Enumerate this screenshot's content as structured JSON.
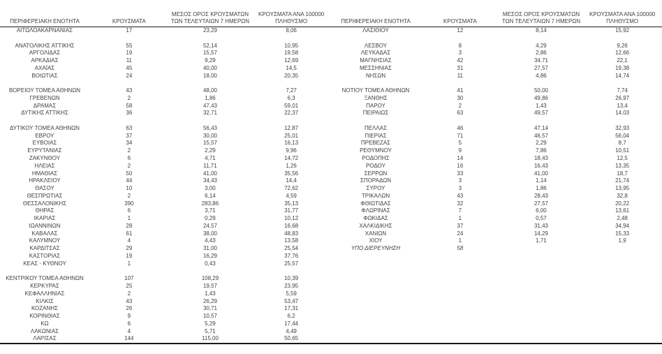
{
  "document": {
    "description_labels": {
      "region_header": "ΠΕΡΙΦΕΡΕΙΑΚΗ ΕΝΟΤΗΤΑ",
      "cases_header": "ΚΡΟΥΣΜΑΤΑ",
      "avg7day_header": "ΜΕΣΟΣ ΟΡΟΣ ΚΡΟΥΣΜΑΤΩΝ ΤΩΝ ΤΕΛΕΥΤΑΙΩΝ 7 ΗΜΕΡΩΝ",
      "per100k_header": "ΚΡΟΥΣΜΑΤΑ ΑΝΑ 100000 ΠΛΗΘΥΣΜΟ"
    }
  },
  "tables": [
    {
      "headers": [
        [
          "ΠΕΡΙΦΕΡΕΙΑΚΗ ΕΝΟΤΗΤΑ"
        ],
        [
          "ΚΡΟΥΣΜΑΤΑ"
        ],
        [
          "ΜΕΣΟΣ ΟΡΟΣ ΚΡΟΥΣΜΑΤΩΝ",
          "ΤΩΝ ΤΕΛΕΥΤΑΙΩΝ 7 ΗΜΕΡΩΝ"
        ],
        [
          "ΚΡΟΥΣΜΑΤΑ ΑΝΑ 100000",
          "ΠΛΗΘΥΣΜΟ"
        ]
      ],
      "rows": [
        {
          "cells": [
            "ΑΙΤΩΛΟΑΚΑΡΝΑΝΙΑΣ",
            "17",
            "23,29",
            "8,06"
          ]
        },
        {
          "blank": true
        },
        {
          "cells": [
            "ΑΝΑΤΟΛΙΚΗΣ ΑΤΤΙΚΗΣ",
            "55",
            "52,14",
            "10,95"
          ]
        },
        {
          "cells": [
            "ΑΡΓΟΛΙΔΑΣ",
            "19",
            "15,57",
            "19,58"
          ]
        },
        {
          "cells": [
            "ΑΡΚΑΔΙΑΣ",
            "11",
            "9,29",
            "12,69"
          ]
        },
        {
          "cells": [
            "ΑΧΑΪΑΣ",
            "45",
            "40,00",
            "14,5"
          ]
        },
        {
          "cells": [
            "ΒΟΙΩΤΙΑΣ",
            "24",
            "18,00",
            "20,35"
          ]
        },
        {
          "blank": true
        },
        {
          "cells": [
            "ΒΟΡΕΙΟΥ ΤΟΜΕΑ ΑΘΗΝΩΝ",
            "43",
            "48,00",
            "7,27"
          ]
        },
        {
          "cells": [
            "ΓΡΕΒΕΝΩΝ",
            "2",
            "1,86",
            "6,3"
          ]
        },
        {
          "cells": [
            "ΔΡΑΜΑΣ",
            "58",
            "47,43",
            "59,01"
          ]
        },
        {
          "cells": [
            "ΔΥΤΙΚΗΣ ΑΤΤΙΚΗΣ",
            "36",
            "32,71",
            "22,37"
          ]
        },
        {
          "blank": true
        },
        {
          "cells": [
            "ΔΥΤΙΚΟΥ ΤΟΜΕΑ ΑΘΗΝΩΝ",
            "63",
            "56,43",
            "12,87"
          ]
        },
        {
          "cells": [
            "ΕΒΡΟΥ",
            "37",
            "30,00",
            "25,01"
          ]
        },
        {
          "cells": [
            "ΕΥΒΟΙΑΣ",
            "34",
            "15,57",
            "16,13"
          ]
        },
        {
          "cells": [
            "ΕΥΡΥΤΑΝΙΑΣ",
            "2",
            "2,29",
            "9,96"
          ]
        },
        {
          "cells": [
            "ΖΑΚΥΝΘΟΥ",
            "6",
            "4,71",
            "14,72"
          ]
        },
        {
          "cells": [
            "ΗΛΕΙΑΣ",
            "2",
            "11,71",
            "1,26"
          ]
        },
        {
          "cells": [
            "ΗΜΑΘΙΑΣ",
            "50",
            "41,00",
            "35,56"
          ]
        },
        {
          "cells": [
            "ΗΡΑΚΛΕΙΟΥ",
            "44",
            "34,43",
            "14,4"
          ]
        },
        {
          "cells": [
            "ΘΑΣΟΥ",
            "10",
            "3,00",
            "72,62"
          ]
        },
        {
          "cells": [
            "ΘΕΣΠΡΩΤΙΑΣ",
            "2",
            "6,14",
            "4,59"
          ]
        },
        {
          "cells": [
            "ΘΕΣΣΑΛΟΝΙΚΗΣ",
            "390",
            "283,86",
            "35,13"
          ]
        },
        {
          "cells": [
            "ΘΗΡΑΣ",
            "6",
            "3,71",
            "31,77"
          ]
        },
        {
          "cells": [
            "ΙΚΑΡΙΑΣ",
            "1",
            "0,29",
            "10,12"
          ]
        },
        {
          "cells": [
            "ΙΩΑΝΝΙΝΩΝ",
            "28",
            "24,57",
            "16,68"
          ]
        },
        {
          "cells": [
            "ΚΑΒΑΛΑΣ",
            "61",
            "38,00",
            "48,83"
          ]
        },
        {
          "cells": [
            "ΚΑΛΥΜΝΟΥ",
            "4",
            "4,43",
            "13,58"
          ]
        },
        {
          "cells": [
            "ΚΑΡΔΙΤΣΑΣ",
            "29",
            "31,00",
            "25,54"
          ]
        },
        {
          "cells": [
            "ΚΑΣΤΟΡΙΑΣ",
            "19",
            "16,29",
            "37,76"
          ]
        },
        {
          "cells": [
            "ΚΕΑΣ - ΚΥΘΝΟΥ",
            "1",
            "0,43",
            "25,57"
          ]
        },
        {
          "blank": true
        },
        {
          "cells": [
            "ΚΕΝΤΡΙΚΟΥ ΤΟΜΕΑ ΑΘΗΝΩΝ",
            "107",
            "108,29",
            "10,39"
          ]
        },
        {
          "cells": [
            "ΚΕΡΚΥΡΑΣ",
            "25",
            "19,57",
            "23,95"
          ]
        },
        {
          "cells": [
            "ΚΕΦΑΛΛΗΝΙΑΣ",
            "2",
            "1,43",
            "5,59"
          ]
        },
        {
          "cells": [
            "ΚΙΛΚΙΣ",
            "43",
            "26,29",
            "53,47"
          ]
        },
        {
          "cells": [
            "ΚΟΖΑΝΗΣ",
            "26",
            "30,71",
            "17,31"
          ]
        },
        {
          "cells": [
            "ΚΟΡΙΝΘΙΑΣ",
            "9",
            "10,57",
            "6,2"
          ]
        },
        {
          "cells": [
            "ΚΩ",
            "6",
            "5,29",
            "17,44"
          ]
        },
        {
          "cells": [
            "ΛΑΚΩΝΙΑΣ",
            "4",
            "5,71",
            "4,49"
          ]
        },
        {
          "cells": [
            "ΛΑΡΙΣΑΣ",
            "144",
            "115,00",
            "50,65"
          ]
        }
      ]
    },
    {
      "headers": [
        [
          "ΠΕΡΙΦΕΡΕΙΑΚΗ ΕΝΟΤΗΤΑ"
        ],
        [
          "ΚΡΟΥΣΜΑΤΑ"
        ],
        [
          "ΜΕΣΟΣ ΟΡΟΣ ΚΡΟΥΣΜΑΤΩΝ",
          "ΤΩΝ ΤΕΛΕΥΤΑΙΩΝ 7 ΗΜΕΡΩΝ"
        ],
        [
          "ΚΡΟΥΣΜΑΤΑ ΑΝΑ 100000",
          "ΠΛΗΘΥΣΜΟ"
        ]
      ],
      "rows": [
        {
          "cells": [
            "ΛΑΣΙΘΙΟΥ",
            "12",
            "8,14",
            "15,92"
          ]
        },
        {
          "blank": true
        },
        {
          "cells": [
            "ΛΕΣΒΟΥ",
            "8",
            "4,29",
            "9,26"
          ]
        },
        {
          "cells": [
            "ΛΕΥΚΑΔΑΣ",
            "3",
            "2,86",
            "12,66"
          ]
        },
        {
          "cells": [
            "ΜΑΓΝΗΣΙΑΣ",
            "42",
            "34,71",
            "22,1"
          ]
        },
        {
          "cells": [
            "ΜΕΣΣΗΝΙΑΣ",
            "31",
            "27,57",
            "19,38"
          ]
        },
        {
          "cells": [
            "ΝΗΣΩΝ",
            "11",
            "4,86",
            "14,74"
          ]
        },
        {
          "blank": true
        },
        {
          "cells": [
            "ΝΟΤΙΟΥ ΤΟΜΕΑ ΑΘΗΝΩΝ",
            "41",
            "50,00",
            "7,74"
          ]
        },
        {
          "cells": [
            "ΞΑΝΘΗΣ",
            "30",
            "49,86",
            "26,97"
          ]
        },
        {
          "cells": [
            "ΠΑΡΟΥ",
            "2",
            "1,43",
            "13,4"
          ]
        },
        {
          "cells": [
            "ΠΕΙΡΑΙΩΣ",
            "63",
            "49,57",
            "14,03"
          ]
        },
        {
          "blank": true
        },
        {
          "cells": [
            "ΠΕΛΛΑΣ",
            "46",
            "47,14",
            "32,93"
          ]
        },
        {
          "cells": [
            "ΠΙΕΡΙΑΣ",
            "71",
            "46,57",
            "56,04"
          ]
        },
        {
          "cells": [
            "ΠΡΕΒΕΖΑΣ",
            "5",
            "2,29",
            "8,7"
          ]
        },
        {
          "cells": [
            "ΡΕΘΥΜΝΟΥ",
            "9",
            "7,86",
            "10,51"
          ]
        },
        {
          "cells": [
            "ΡΟΔΟΠΗΣ",
            "14",
            "18,43",
            "12,5"
          ]
        },
        {
          "cells": [
            "ΡΟΔΟΥ",
            "16",
            "16,43",
            "13,35"
          ]
        },
        {
          "cells": [
            "ΣΕΡΡΩΝ",
            "33",
            "41,00",
            "18,7"
          ]
        },
        {
          "cells": [
            "ΣΠΟΡΑΔΩΝ",
            "3",
            "1,14",
            "21,74"
          ]
        },
        {
          "cells": [
            "ΣΥΡΟΥ",
            "3",
            "1,86",
            "13,95"
          ]
        },
        {
          "cells": [
            "ΤΡΙΚΑΛΩΝ",
            "43",
            "28,43",
            "32,8"
          ]
        },
        {
          "cells": [
            "ΦΘΙΩΤΙΔΑΣ",
            "32",
            "27,57",
            "20,22"
          ]
        },
        {
          "cells": [
            "ΦΛΩΡΙΝΑΣ",
            "7",
            "6,00",
            "13,61"
          ]
        },
        {
          "cells": [
            "ΦΩΚΙΔΑΣ",
            "1",
            "0,57",
            "2,48"
          ]
        },
        {
          "cells": [
            "ΧΑΛΚΙΔΙΚΗΣ",
            "37",
            "31,43",
            "34,94"
          ]
        },
        {
          "cells": [
            "ΧΑΝΙΩΝ",
            "24",
            "14,29",
            "15,33"
          ]
        },
        {
          "cells": [
            "ΧΙΟΥ",
            "1",
            "1,71",
            "1,9"
          ]
        },
        {
          "cells": [
            "ΥΠΟ ΔΙΕΡΕΥΝΗΣΗ",
            "58",
            "",
            ""
          ],
          "italic": true
        }
      ]
    }
  ],
  "colors": {
    "text": "#3f3f3f",
    "rule": "#1a1a1a",
    "background": "#ffffff"
  }
}
